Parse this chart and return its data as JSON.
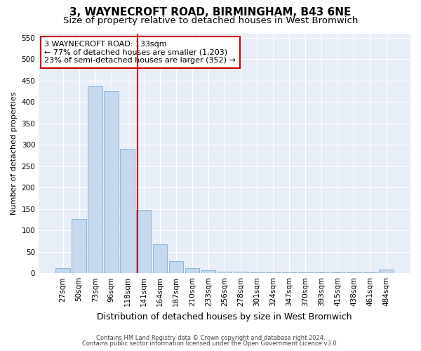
{
  "title1": "3, WAYNECROFT ROAD, BIRMINGHAM, B43 6NE",
  "title2": "Size of property relative to detached houses in West Bromwich",
  "xlabel": "Distribution of detached houses by size in West Bromwich",
  "ylabel": "Number of detached properties",
  "bin_labels": [
    "27sqm",
    "50sqm",
    "73sqm",
    "96sqm",
    "118sqm",
    "141sqm",
    "164sqm",
    "187sqm",
    "210sqm",
    "233sqm",
    "256sqm",
    "278sqm",
    "301sqm",
    "324sqm",
    "347sqm",
    "370sqm",
    "393sqm",
    "415sqm",
    "438sqm",
    "461sqm",
    "484sqm"
  ],
  "bar_values": [
    12,
    127,
    437,
    425,
    291,
    147,
    68,
    28,
    11,
    7,
    4,
    3,
    2,
    2,
    2,
    2,
    2,
    2,
    2,
    2,
    8
  ],
  "bar_color": "#c5d8ee",
  "bar_edge_color": "#7aafd4",
  "annotation_text": "3 WAYNECROFT ROAD: 133sqm\n← 77% of detached houses are smaller (1,203)\n23% of semi-detached houses are larger (352) →",
  "annotation_box_color": "#ffffff",
  "annotation_box_edge": "#cc0000",
  "vline_color": "#cc0000",
  "ylim": [
    0,
    560
  ],
  "yticks": [
    0,
    50,
    100,
    150,
    200,
    250,
    300,
    350,
    400,
    450,
    500,
    550
  ],
  "footer1": "Contains HM Land Registry data © Crown copyright and database right 2024.",
  "footer2": "Contains public sector information licensed under the Open Government Licence v3.0.",
  "bg_color": "#ffffff",
  "plot_bg_color": "#e8eef8",
  "title1_fontsize": 11,
  "title2_fontsize": 9.5,
  "annot_fontsize": 8,
  "ylabel_fontsize": 8,
  "xlabel_fontsize": 9,
  "tick_fontsize": 7.5,
  "footer_fontsize": 6
}
